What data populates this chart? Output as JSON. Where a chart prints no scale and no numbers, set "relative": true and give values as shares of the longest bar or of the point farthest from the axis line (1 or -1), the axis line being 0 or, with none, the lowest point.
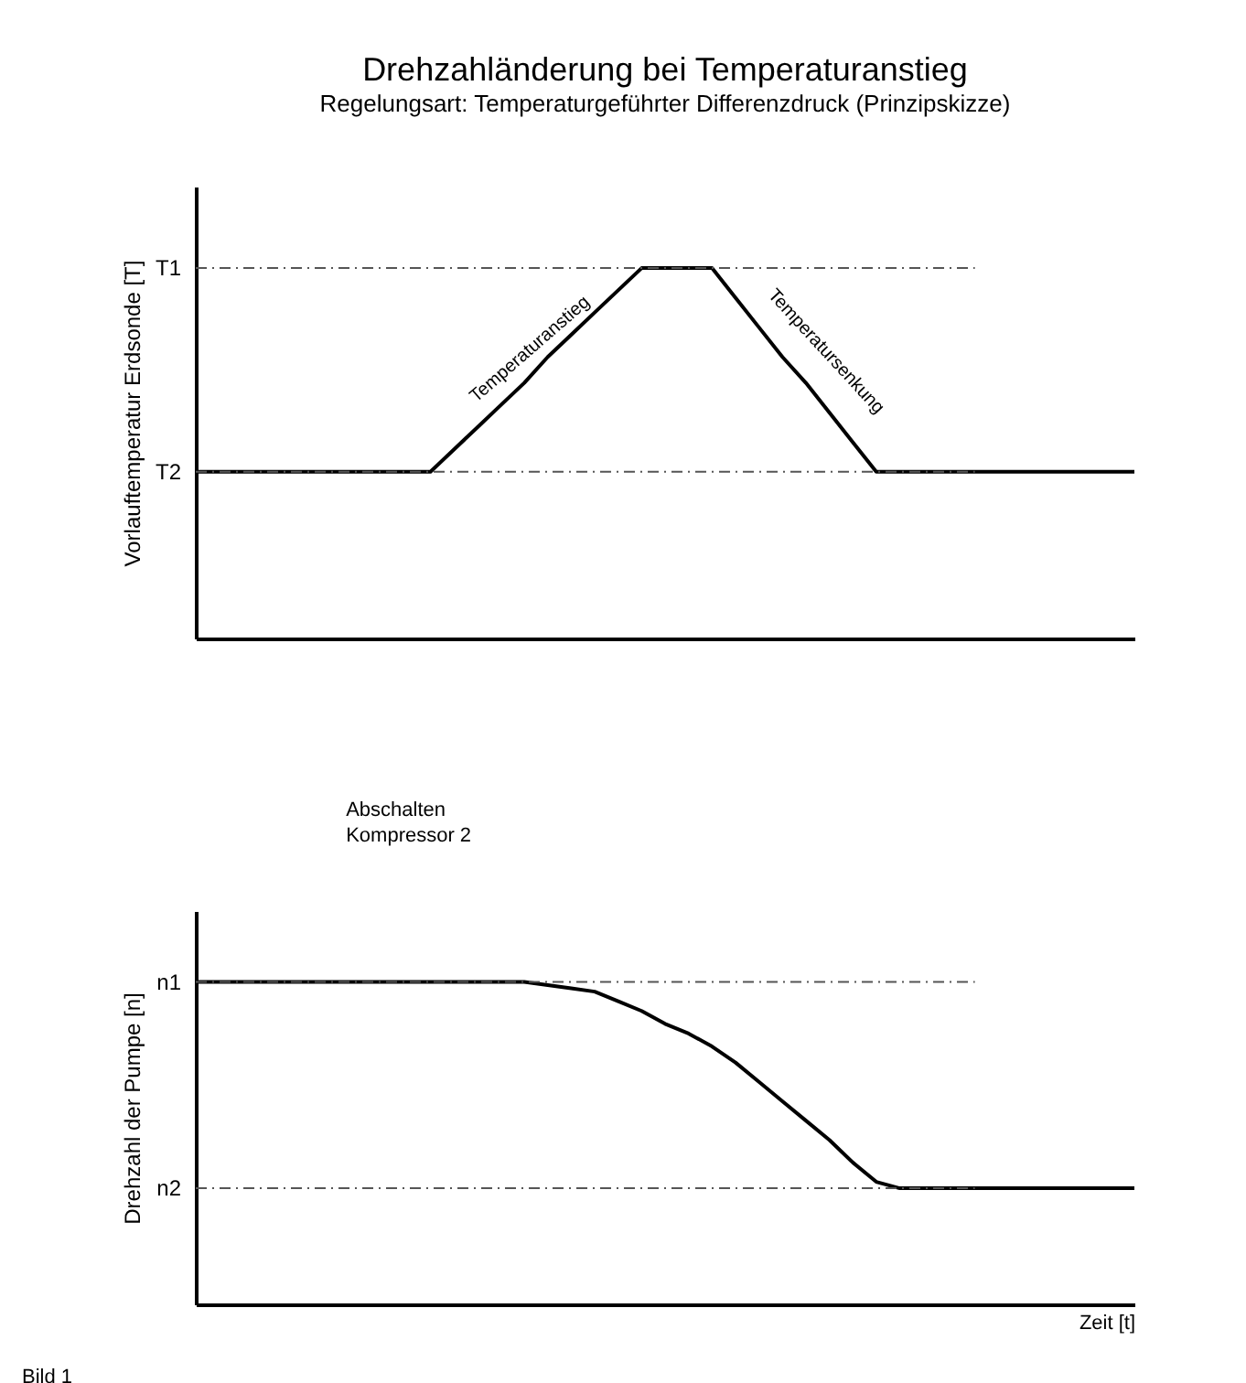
{
  "chart_data": [
    {
      "type": "line",
      "title": "Drehzahländerung bei Temperaturanstieg",
      "subtitle": "Regelungsart: Temperaturgeführter Differenzdruck (Prinzipskizze)",
      "ylabel": "Vorlauftemperatur Erdsonde [T]",
      "relative": true,
      "tick_labels": false,
      "categories": [
        null,
        null,
        null,
        null,
        null,
        null,
        null,
        null,
        null,
        null,
        null,
        null,
        null,
        null,
        null,
        null,
        null,
        null,
        null,
        null,
        null,
        null,
        null,
        null,
        null,
        null,
        null,
        null,
        null,
        null,
        null,
        null,
        null,
        null,
        null,
        null,
        null,
        null,
        null,
        null,
        null
      ],
      "series": [
        {
          "color": "#000000",
          "values": [
            0.45,
            0.45,
            0.45,
            0.45,
            0.45,
            0.45,
            0.45,
            0.45,
            0.45,
            0.45,
            0.45,
            0.51,
            0.57,
            0.63,
            0.69,
            0.76,
            0.82,
            0.88,
            0.94,
            1,
            1,
            1,
            1,
            0.92,
            0.84,
            0.76,
            0.69,
            0.61,
            0.53,
            0.45,
            0.45,
            0.45,
            0.45,
            0.45,
            0.45,
            0.45,
            0.45,
            0.45,
            0.45,
            0.45,
            0.45
          ]
        }
      ],
      "ref_lines": [
        {
          "axis": "y",
          "value": 1,
          "label": "T1",
          "color": "#555555",
          "line_style": "dashed"
        },
        {
          "axis": "y",
          "value": 0.45,
          "label": "T2",
          "color": "#555555",
          "line_style": "dashed"
        }
      ],
      "annotations": [
        "Temperaturanstieg",
        "Temperatursenkung"
      ]
    },
    {
      "type": "line",
      "ylabel": "Drehzahl der Pumpe [n]",
      "xlabel": "Zeit [t]",
      "relative": true,
      "tick_labels": false,
      "categories": [
        null,
        null,
        null,
        null,
        null,
        null,
        null,
        null,
        null,
        null,
        null,
        null,
        null,
        null,
        null,
        null,
        null,
        null,
        null,
        null,
        null,
        null,
        null,
        null,
        null,
        null,
        null,
        null,
        null,
        null,
        null,
        null,
        null,
        null,
        null,
        null,
        null,
        null,
        null,
        null,
        null
      ],
      "series": [
        {
          "color": "#000000",
          "values": [
            1,
            1,
            1,
            1,
            1,
            1,
            1,
            1,
            1,
            1,
            1,
            1,
            1,
            1,
            1,
            0.99,
            0.98,
            0.97,
            0.94,
            0.91,
            0.87,
            0.84,
            0.8,
            0.75,
            0.69,
            0.63,
            0.57,
            0.51,
            0.44,
            0.38,
            0.36,
            0.36,
            0.36,
            0.36,
            0.36,
            0.36,
            0.36,
            0.36,
            0.36,
            0.36,
            0.36
          ]
        }
      ],
      "ref_lines": [
        {
          "axis": "y",
          "value": 1,
          "label": "n1",
          "color": "#555555",
          "line_style": "dashed"
        },
        {
          "axis": "y",
          "value": 0.36,
          "label": "n2",
          "color": "#555555",
          "line_style": "dashed"
        }
      ],
      "annotations": [
        "Abschalten Kompressor 2",
        "Bild 1"
      ]
    }
  ]
}
